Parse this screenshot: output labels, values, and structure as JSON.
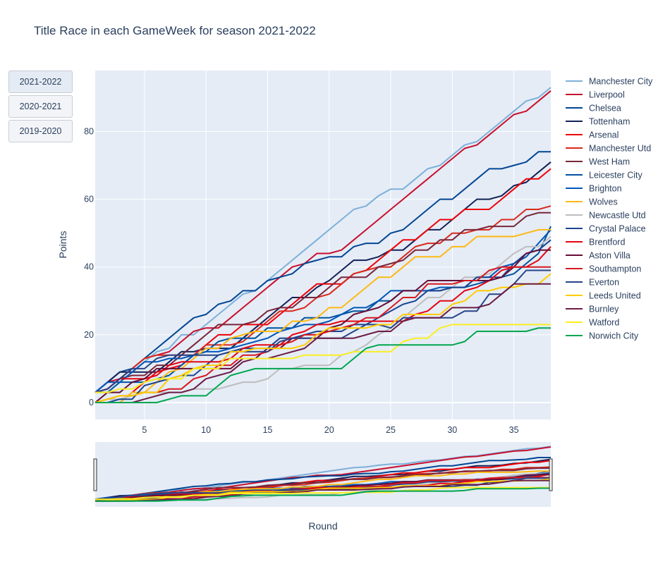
{
  "chart_title": "Title Race in each GameWeek for season 2021-2022",
  "season_buttons": [
    {
      "label": "2021-2022",
      "active": true
    },
    {
      "label": "2020-2021",
      "active": false
    },
    {
      "label": "2019-2020",
      "active": false
    }
  ],
  "chart_data": {
    "type": "line",
    "title": "Title Race in each GameWeek for season 2021-2022",
    "xlabel": "Round",
    "ylabel": "Points",
    "xlim": [
      1,
      38
    ],
    "ylim": [
      -5,
      98
    ],
    "x_ticks": [
      5,
      10,
      15,
      20,
      25,
      30,
      35
    ],
    "y_ticks": [
      0,
      20,
      40,
      60,
      80
    ],
    "grid": true,
    "legend_position": "right",
    "range_slider": true,
    "x": [
      1,
      2,
      3,
      4,
      5,
      6,
      7,
      8,
      9,
      10,
      11,
      12,
      13,
      14,
      15,
      16,
      17,
      18,
      19,
      20,
      21,
      22,
      23,
      24,
      25,
      26,
      27,
      28,
      29,
      30,
      31,
      32,
      33,
      34,
      35,
      36,
      37,
      38
    ],
    "series": [
      {
        "name": "Manchester City",
        "color": "#7eb0d9",
        "values": [
          0,
          3,
          6,
          9,
          12,
          15,
          16,
          20,
          20,
          23,
          26,
          29,
          32,
          33,
          36,
          39,
          42,
          45,
          48,
          51,
          54,
          57,
          58,
          61,
          63,
          63,
          66,
          69,
          70,
          73,
          76,
          77,
          80,
          83,
          86,
          89,
          90,
          93
        ]
      },
      {
        "name": "Liverpool",
        "color": "#c8102e",
        "values": [
          3,
          6,
          7,
          10,
          13,
          14,
          15,
          18,
          21,
          22,
          22,
          25,
          28,
          31,
          34,
          37,
          40,
          41,
          44,
          44,
          45,
          48,
          51,
          54,
          57,
          60,
          63,
          66,
          69,
          72,
          75,
          76,
          79,
          82,
          85,
          86,
          89,
          92
        ]
      },
      {
        "name": "Chelsea",
        "color": "#034694",
        "values": [
          3,
          6,
          9,
          10,
          13,
          16,
          19,
          22,
          25,
          26,
          29,
          30,
          33,
          33,
          36,
          37,
          38,
          41,
          42,
          43,
          43,
          46,
          47,
          47,
          50,
          51,
          54,
          57,
          60,
          60,
          63,
          66,
          69,
          69,
          70,
          71,
          74,
          74
        ]
      },
      {
        "name": "Tottenham",
        "color": "#132257",
        "values": [
          3,
          6,
          9,
          9,
          9,
          9,
          12,
          15,
          15,
          16,
          16,
          16,
          19,
          22,
          25,
          28,
          31,
          31,
          34,
          36,
          39,
          42,
          42,
          43,
          45,
          45,
          48,
          51,
          51,
          54,
          57,
          60,
          60,
          61,
          64,
          65,
          68,
          71
        ]
      },
      {
        "name": "Arsenal",
        "color": "#ef0107",
        "values": [
          0,
          0,
          0,
          3,
          6,
          9,
          10,
          11,
          14,
          17,
          20,
          20,
          23,
          23,
          23,
          26,
          29,
          32,
          35,
          35,
          35,
          38,
          39,
          42,
          45,
          48,
          48,
          51,
          54,
          54,
          57,
          57,
          57,
          60,
          63,
          66,
          66,
          69
        ]
      },
      {
        "name": "Manchester Utd",
        "color": "#da291c",
        "values": [
          3,
          4,
          7,
          10,
          13,
          14,
          14,
          14,
          14,
          17,
          17,
          17,
          18,
          21,
          24,
          27,
          27,
          28,
          31,
          32,
          35,
          38,
          39,
          40,
          40,
          43,
          46,
          47,
          47,
          50,
          50,
          51,
          51,
          54,
          54,
          57,
          57,
          58
        ]
      },
      {
        "name": "West Ham",
        "color": "#7a263a",
        "values": [
          3,
          4,
          7,
          8,
          8,
          11,
          11,
          14,
          17,
          20,
          23,
          23,
          23,
          24,
          27,
          28,
          28,
          31,
          31,
          34,
          37,
          37,
          37,
          40,
          41,
          42,
          45,
          45,
          48,
          48,
          51,
          51,
          52,
          52,
          52,
          55,
          56,
          56
        ]
      },
      {
        "name": "Leicester City",
        "color": "#0053a0",
        "values": [
          3,
          3,
          6,
          6,
          6,
          7,
          8,
          11,
          14,
          15,
          18,
          19,
          19,
          19,
          22,
          22,
          22,
          25,
          25,
          25,
          26,
          27,
          27,
          30,
          30,
          33,
          33,
          33,
          33,
          34,
          34,
          35,
          36,
          37,
          38,
          41,
          44,
          52
        ]
      },
      {
        "name": "Brighton",
        "color": "#0057b8",
        "values": [
          3,
          6,
          6,
          9,
          12,
          12,
          13,
          13,
          14,
          15,
          15,
          16,
          17,
          18,
          19,
          21,
          22,
          23,
          23,
          24,
          26,
          28,
          28,
          30,
          33,
          33,
          33,
          33,
          34,
          34,
          34,
          37,
          37,
          40,
          41,
          43,
          47,
          51
        ]
      },
      {
        "name": "Wolves",
        "color": "#fdb913",
        "values": [
          0,
          0,
          0,
          3,
          3,
          6,
          9,
          10,
          13,
          16,
          16,
          19,
          20,
          21,
          21,
          21,
          24,
          24,
          25,
          28,
          28,
          31,
          34,
          37,
          37,
          40,
          43,
          43,
          43,
          46,
          46,
          49,
          49,
          49,
          49,
          50,
          51,
          51
        ]
      },
      {
        "name": "Newcastle Utd",
        "color": "#bdbdbd",
        "values": [
          0,
          1,
          1,
          2,
          3,
          3,
          3,
          3,
          4,
          4,
          4,
          5,
          6,
          6,
          7,
          10,
          10,
          11,
          11,
          11,
          14,
          15,
          17,
          20,
          22,
          25,
          28,
          31,
          31,
          34,
          37,
          37,
          38,
          41,
          44,
          46,
          46,
          49
        ]
      },
      {
        "name": "Crystal Palace",
        "color": "#1b458f",
        "values": [
          0,
          0,
          1,
          1,
          5,
          6,
          7,
          8,
          8,
          11,
          14,
          15,
          16,
          16,
          16,
          19,
          19,
          20,
          21,
          21,
          21,
          23,
          23,
          25,
          27,
          29,
          30,
          33,
          33,
          34,
          34,
          37,
          37,
          37,
          41,
          44,
          45,
          48
        ]
      },
      {
        "name": "Brentford",
        "color": "#e30613",
        "values": [
          3,
          4,
          7,
          7,
          7,
          8,
          11,
          12,
          12,
          12,
          12,
          13,
          16,
          17,
          17,
          17,
          20,
          21,
          23,
          23,
          24,
          24,
          24,
          24,
          24,
          24,
          26,
          27,
          30,
          30,
          33,
          34,
          36,
          39,
          40,
          40,
          42,
          46
        ]
      },
      {
        "name": "Aston Villa",
        "color": "#670e36",
        "values": [
          0,
          3,
          3,
          6,
          7,
          10,
          10,
          10,
          10,
          10,
          10,
          10,
          13,
          13,
          16,
          16,
          19,
          19,
          19,
          22,
          23,
          26,
          27,
          28,
          30,
          33,
          33,
          36,
          36,
          36,
          36,
          36,
          36,
          37,
          40,
          44,
          45,
          45
        ]
      },
      {
        "name": "Southampton",
        "color": "#d71920",
        "values": [
          0,
          1,
          2,
          2,
          3,
          3,
          4,
          4,
          7,
          8,
          11,
          11,
          14,
          14,
          15,
          17,
          18,
          20,
          20,
          21,
          22,
          23,
          25,
          25,
          28,
          31,
          31,
          35,
          35,
          35,
          36,
          36,
          39,
          40,
          40,
          40,
          40,
          40
        ]
      },
      {
        "name": "Everton",
        "color": "#274488",
        "values": [
          3,
          4,
          7,
          10,
          10,
          13,
          14,
          14,
          14,
          14,
          14,
          15,
          15,
          15,
          15,
          18,
          19,
          19,
          19,
          19,
          19,
          21,
          23,
          23,
          22,
          25,
          25,
          25,
          25,
          25,
          27,
          27,
          32,
          32,
          35,
          39,
          39,
          39
        ]
      },
      {
        "name": "Leeds United",
        "color": "#ffcd00",
        "values": [
          0,
          1,
          2,
          2,
          3,
          3,
          7,
          8,
          10,
          11,
          11,
          15,
          15,
          16,
          16,
          16,
          16,
          17,
          20,
          22,
          22,
          22,
          22,
          23,
          23,
          26,
          26,
          26,
          26,
          29,
          30,
          33,
          33,
          34,
          34,
          35,
          35,
          38
        ]
      },
      {
        "name": "Burnley",
        "color": "#6c1d45",
        "values": [
          0,
          0,
          0,
          0,
          1,
          2,
          3,
          3,
          4,
          7,
          8,
          9,
          12,
          13,
          13,
          14,
          15,
          16,
          19,
          19,
          19,
          19,
          20,
          21,
          21,
          24,
          25,
          25,
          25,
          28,
          28,
          28,
          29,
          32,
          35,
          35,
          35,
          35
        ]
      },
      {
        "name": "Watford",
        "color": "#fbee23",
        "values": [
          3,
          3,
          4,
          4,
          6,
          7,
          7,
          7,
          10,
          10,
          10,
          13,
          13,
          13,
          13,
          13,
          13,
          14,
          14,
          14,
          14,
          15,
          15,
          15,
          15,
          18,
          19,
          19,
          22,
          23,
          23,
          23,
          23,
          23,
          23,
          23,
          23,
          23
        ]
      },
      {
        "name": "Norwich City",
        "color": "#00a650",
        "values": [
          0,
          0,
          0,
          0,
          0,
          0,
          1,
          2,
          2,
          2,
          5,
          8,
          9,
          10,
          10,
          10,
          10,
          10,
          10,
          10,
          10,
          13,
          16,
          17,
          17,
          17,
          17,
          17,
          17,
          17,
          18,
          21,
          21,
          21,
          21,
          21,
          22,
          22
        ]
      }
    ]
  }
}
